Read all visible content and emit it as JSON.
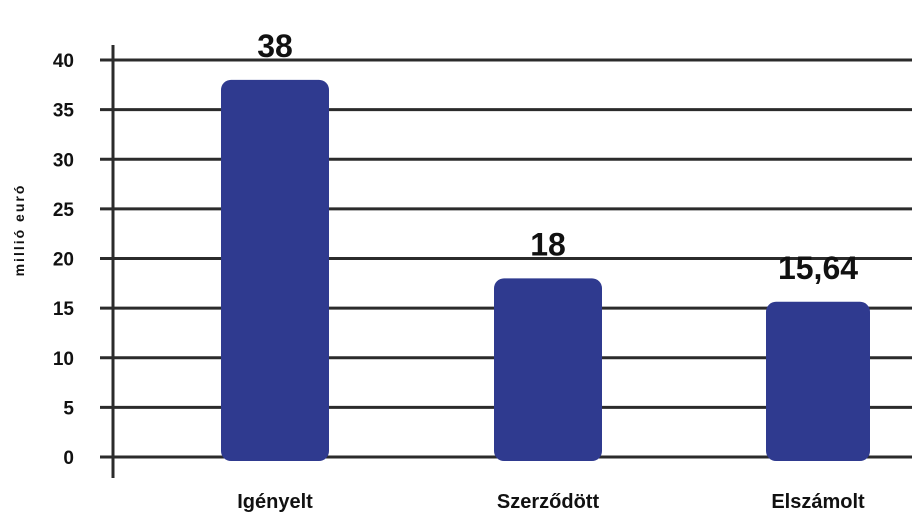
{
  "chart_data": {
    "type": "bar",
    "title": "",
    "xlabel": "",
    "ylabel": "millió euró",
    "categories": [
      "Igényelt",
      "Szerződött",
      "Elszámolt"
    ],
    "values": [
      38,
      18,
      15.64
    ],
    "value_labels": [
      "38",
      "18",
      "15,64"
    ],
    "ylim": [
      0,
      40
    ],
    "yticks": [
      0,
      5,
      10,
      15,
      20,
      25,
      30,
      35,
      40
    ],
    "grid": true,
    "legend": "none",
    "bar_color": "#2f3a8f"
  }
}
